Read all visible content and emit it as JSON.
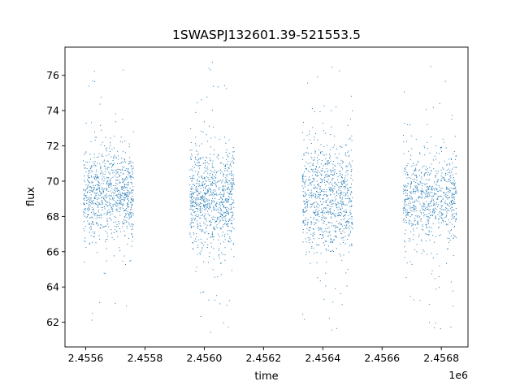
{
  "chart_data": {
    "type": "scatter",
    "title": "1SWASPJ132601.39-521553.5",
    "xlabel": "time",
    "ylabel": "flux",
    "x_offset_label": "1e6",
    "xlim": [
      2455530,
      2456890
    ],
    "ylim": [
      60.6,
      77.6
    ],
    "x_ticks": [
      2455600,
      2455800,
      2456000,
      2456200,
      2456400,
      2456600,
      2456800
    ],
    "x_tick_labels": [
      "2.4556",
      "2.4558",
      "2.4560",
      "2.4562",
      "2.4564",
      "2.4566",
      "2.4568"
    ],
    "y_ticks": [
      62,
      64,
      66,
      68,
      70,
      72,
      74,
      76
    ],
    "y_tick_labels": [
      "62",
      "64",
      "66",
      "68",
      "70",
      "72",
      "74",
      "76"
    ],
    "grid": false,
    "marker_color": "#1f77b4",
    "clusters": [
      {
        "x_start": 2455590,
        "x_end": 2455760,
        "flux_center": 69.2,
        "flux_spread": 1.3,
        "flux_min": 61.6,
        "flux_max": 76.7,
        "n_points": 900
      },
      {
        "x_start": 2455950,
        "x_end": 2456100,
        "flux_center": 69.0,
        "flux_spread": 1.4,
        "flux_min": 61.4,
        "flux_max": 76.8,
        "n_points": 900
      },
      {
        "x_start": 2456330,
        "x_end": 2456500,
        "flux_center": 69.0,
        "flux_spread": 1.5,
        "flux_min": 61.4,
        "flux_max": 76.9,
        "n_points": 900
      },
      {
        "x_start": 2456670,
        "x_end": 2456850,
        "flux_center": 69.0,
        "flux_spread": 1.3,
        "flux_min": 61.4,
        "flux_max": 76.7,
        "n_points": 800
      }
    ]
  }
}
